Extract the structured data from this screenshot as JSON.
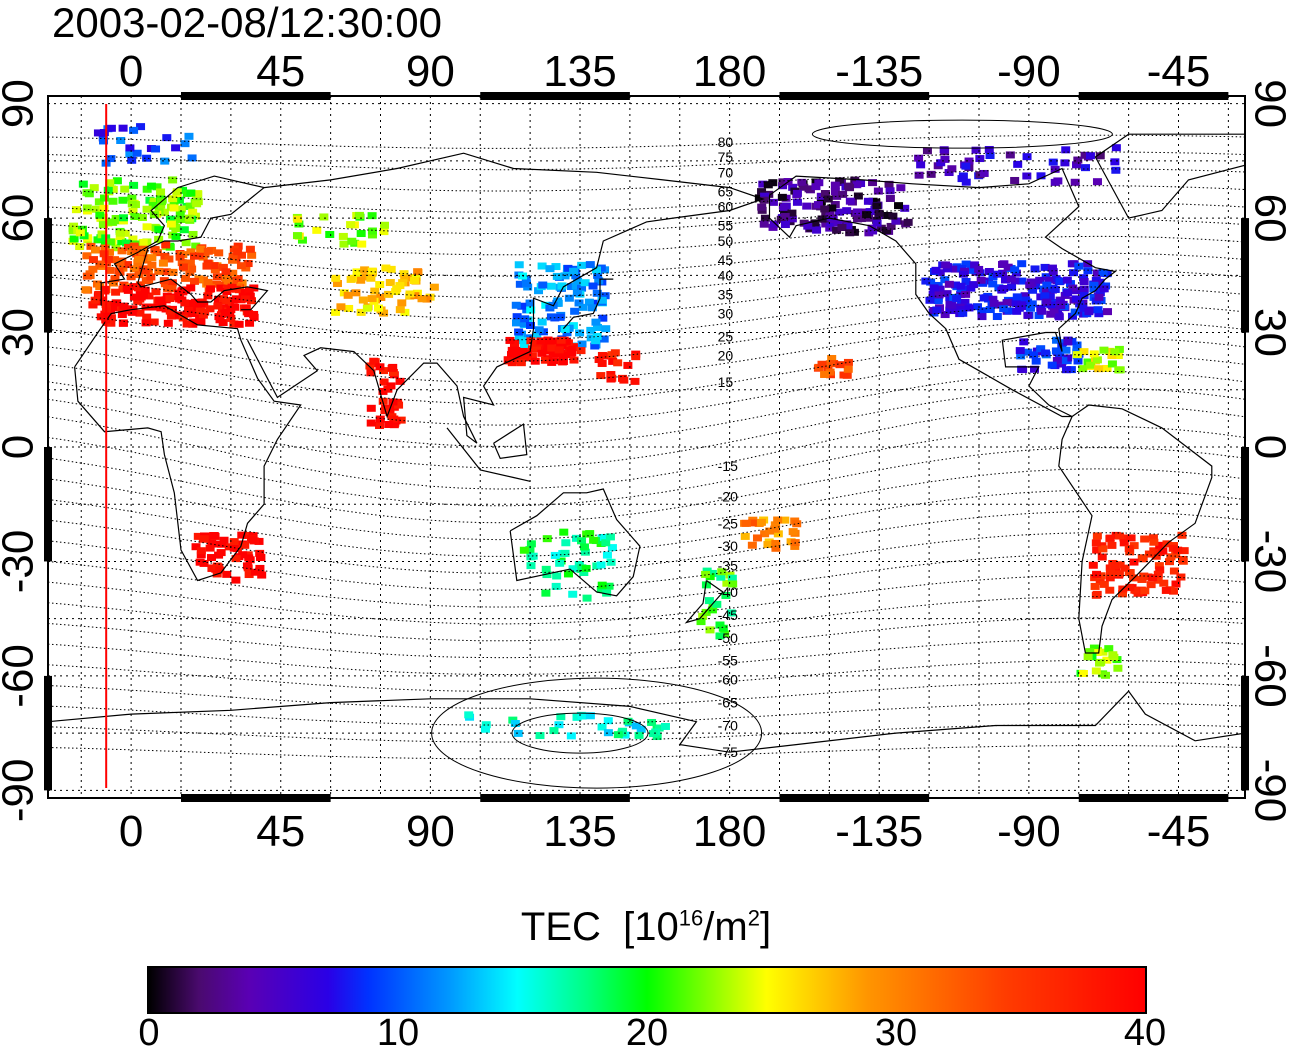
{
  "title": "2003-02-08/12:30:00",
  "map": {
    "x_ticks_top": [
      "0",
      "45",
      "90",
      "135",
      "180",
      "-135",
      "-90",
      "-45"
    ],
    "x_ticks_bottom": [
      "0",
      "45",
      "90",
      "135",
      "180",
      "-135",
      "-90",
      "-45"
    ],
    "y_ticks_left": [
      "90",
      "60",
      "30",
      "0",
      "-30",
      "-60",
      "-90"
    ],
    "y_ticks_right": [
      "90",
      "60",
      "30",
      "0",
      "-30",
      "-60",
      "-90"
    ],
    "x_tick_lon": [
      0,
      45,
      90,
      135,
      180,
      225,
      270,
      315
    ],
    "y_tick_lat": [
      90,
      60,
      30,
      0,
      -30,
      -60,
      -90
    ],
    "lon_range": [
      -25,
      335
    ],
    "lat_range": [
      -92,
      92
    ],
    "grid": "dotted",
    "contour_labels_north": [
      "80",
      "75",
      "70",
      "65",
      "60",
      "55",
      "50",
      "45",
      "40",
      "35",
      "30",
      "25",
      "20",
      "15"
    ],
    "contour_labels_north_lat": [
      80,
      76,
      72,
      67,
      63,
      58,
      54,
      49,
      45,
      40,
      35,
      29,
      24,
      17
    ],
    "contour_labels_south": [
      "-15",
      "-20",
      "-25",
      "-30",
      "-35",
      "-40",
      "-45",
      "-50",
      "-55",
      "-60",
      "-65",
      "-70",
      "-75"
    ],
    "contour_labels_south_lat": [
      -5,
      -13,
      -20,
      -26,
      -31,
      -38,
      -44,
      -50,
      -56,
      -61,
      -67,
      -73,
      -80
    ],
    "marker_lon": -7.5,
    "colors": {
      "marker": "#ff0000",
      "land": "#000000"
    },
    "tec_regions": [
      {
        "lon": 0,
        "lat": 62,
        "w": 38,
        "h": 18,
        "tec": 22,
        "n": 140
      },
      {
        "lon": 10,
        "lat": 48,
        "w": 50,
        "h": 12,
        "tec": 33,
        "n": 140
      },
      {
        "lon": 12,
        "lat": 38,
        "w": 50,
        "h": 10,
        "tec": 40,
        "n": 150
      },
      {
        "lon": 2,
        "lat": 80,
        "w": 30,
        "h": 10,
        "tec": 9,
        "n": 25
      },
      {
        "lon": 75,
        "lat": 42,
        "w": 30,
        "h": 12,
        "tec": 27,
        "n": 60
      },
      {
        "lon": 60,
        "lat": 58,
        "w": 30,
        "h": 8,
        "tec": 23,
        "n": 25
      },
      {
        "lon": 128,
        "lat": 38,
        "w": 28,
        "h": 22,
        "tec": 12,
        "n": 110
      },
      {
        "lon": 123,
        "lat": 26,
        "w": 22,
        "h": 6,
        "tec": 40,
        "n": 70
      },
      {
        "lon": 145,
        "lat": 22,
        "w": 12,
        "h": 8,
        "tec": 37,
        "n": 18
      },
      {
        "lon": 75,
        "lat": 15,
        "w": 10,
        "h": 18,
        "tec": 39,
        "n": 35
      },
      {
        "lon": 28,
        "lat": -28,
        "w": 20,
        "h": 12,
        "tec": 40,
        "n": 60
      },
      {
        "lon": 130,
        "lat": -30,
        "w": 28,
        "h": 18,
        "tec": 18,
        "n": 50
      },
      {
        "lon": 175,
        "lat": -40,
        "w": 10,
        "h": 18,
        "tec": 20,
        "n": 25
      },
      {
        "lon": 190,
        "lat": -22,
        "w": 18,
        "h": 8,
        "tec": 30,
        "n": 30
      },
      {
        "lon": 210,
        "lat": 64,
        "w": 45,
        "h": 14,
        "tec": 3,
        "n": 140
      },
      {
        "lon": 265,
        "lat": 42,
        "w": 55,
        "h": 14,
        "tec": 7,
        "n": 220
      },
      {
        "lon": 275,
        "lat": 25,
        "w": 18,
        "h": 8,
        "tec": 8,
        "n": 40
      },
      {
        "lon": 290,
        "lat": 24,
        "w": 14,
        "h": 6,
        "tec": 24,
        "n": 20
      },
      {
        "lon": 265,
        "lat": 75,
        "w": 60,
        "h": 10,
        "tec": 5,
        "n": 50
      },
      {
        "lon": 302,
        "lat": -30,
        "w": 28,
        "h": 16,
        "tec": 37,
        "n": 90
      },
      {
        "lon": 290,
        "lat": -55,
        "w": 12,
        "h": 8,
        "tec": 22,
        "n": 20
      },
      {
        "lon": 130,
        "lat": -72,
        "w": 60,
        "h": 6,
        "tec": 16,
        "n": 35
      },
      {
        "lon": 210,
        "lat": 22,
        "w": 10,
        "h": 5,
        "tec": 33,
        "n": 15
      }
    ]
  },
  "colorbar": {
    "title": "TEC",
    "units_prefix": "[10",
    "units_exp": "16",
    "units_mid": "/m",
    "units_exp2": "2",
    "units_suffix": "]",
    "ticks": [
      "0",
      "10",
      "20",
      "30",
      "40"
    ],
    "tick_values": [
      0,
      10,
      20,
      30,
      40
    ],
    "range": [
      0,
      40
    ]
  }
}
